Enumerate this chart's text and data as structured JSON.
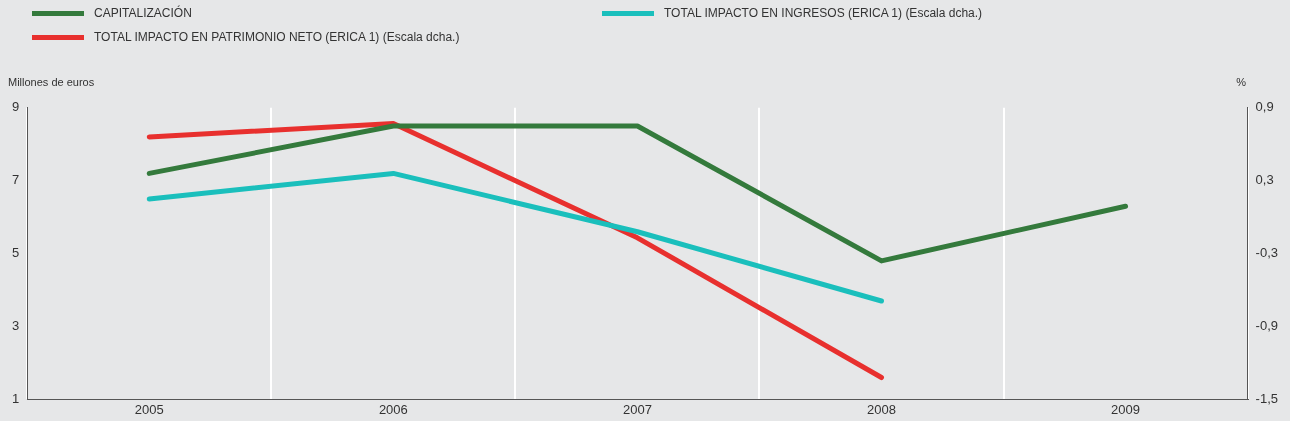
{
  "chart_data": {
    "type": "line",
    "ylabel": "Millones de euros",
    "y2label": "%",
    "categories": [
      "2005",
      "2006",
      "2007",
      "2008",
      "2009"
    ],
    "series": [
      {
        "name": "CAPITALIZACIÓN",
        "color": "#347a3c",
        "values": [
          7.2,
          8.5,
          8.5,
          4.8,
          6.3
        ]
      },
      {
        "name": "TOTAL IMPACTO EN INGRESOS (ERICA 1) (Escala dcha.)",
        "color": "#1abfbc",
        "axis": "y2",
        "values": [
          0.15,
          0.36,
          -0.12,
          -0.69,
          null
        ]
      },
      {
        "name": "TOTAL IMPACTO EN PATRIMONIO NETO (ERICA 1) (Escala dcha.)",
        "color": "#e8302e",
        "axis": "y2",
        "values": [
          0.66,
          0.77,
          -0.17,
          -1.32,
          null
        ]
      }
    ],
    "ylim": [
      1,
      9
    ],
    "yticks": [
      1,
      3,
      5,
      7,
      9
    ],
    "y2lim": [
      -1.5,
      0.9
    ],
    "y2ticks": [
      {
        "value": -1.5,
        "label": "-1,5"
      },
      {
        "value": -0.9,
        "label": "-0,9"
      },
      {
        "value": -0.3,
        "label": "-0,3"
      },
      {
        "value": 0.3,
        "label": "0,3"
      },
      {
        "value": 0.9,
        "label": "0,9"
      }
    ],
    "grid": "x",
    "legend": "top",
    "marker": "none",
    "line_style": "solid"
  }
}
